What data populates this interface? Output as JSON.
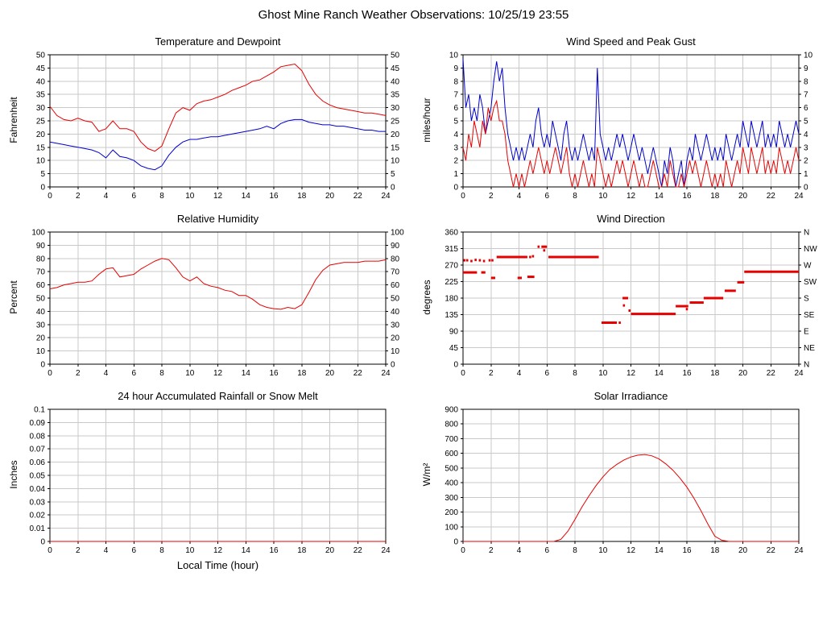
{
  "page_title": "Ghost Mine Ranch Weather Observations: 10/25/19 23:55",
  "chart_data": [
    {
      "type": "line",
      "title": "Temperature and Dewpoint",
      "ylabel": "Fahrenheit",
      "xlim": [
        0,
        24
      ],
      "ylim": [
        0,
        50
      ],
      "xticks": [
        0,
        2,
        4,
        6,
        8,
        10,
        12,
        14,
        16,
        18,
        20,
        22,
        24
      ],
      "yticks": [
        0,
        5,
        10,
        15,
        20,
        25,
        30,
        35,
        40,
        45,
        50
      ],
      "mirror_right": true,
      "grid": true,
      "series": [
        {
          "name": "temperature",
          "color": "#e60000",
          "x0": 0,
          "xstep": 0.5,
          "y": [
            30.5,
            27,
            25.5,
            25,
            26,
            25,
            24.5,
            21,
            22,
            25,
            22,
            22,
            21,
            17,
            14.5,
            13.5,
            15.5,
            22,
            28,
            30,
            29,
            31.5,
            32.5,
            33,
            34,
            35,
            36.5,
            37.5,
            38.5,
            40,
            40.5,
            42,
            43.5,
            45.5,
            46,
            46.5,
            44,
            39,
            35,
            32.5,
            31,
            30,
            29.5,
            29,
            28.5,
            28,
            28,
            27.5,
            27
          ]
        },
        {
          "name": "dewpoint",
          "color": "#0000cc",
          "x0": 0,
          "xstep": 0.5,
          "y": [
            17,
            16.5,
            16,
            15.5,
            15,
            14.5,
            14,
            13,
            11,
            14,
            11.5,
            11,
            10,
            8,
            7,
            6.5,
            8,
            12,
            15,
            17,
            18,
            18,
            18.5,
            19,
            19,
            19.5,
            20,
            20.5,
            21,
            21.5,
            22,
            23,
            22,
            24,
            25,
            25.5,
            25.5,
            24.5,
            24,
            23.5,
            23.5,
            23,
            23,
            22.5,
            22,
            21.5,
            21.5,
            21,
            21
          ]
        }
      ]
    },
    {
      "type": "line",
      "title": "Wind Speed and Peak Gust",
      "ylabel": "miles/hour",
      "xlim": [
        0,
        24
      ],
      "ylim": [
        0,
        10
      ],
      "xticks": [
        0,
        2,
        4,
        6,
        8,
        10,
        12,
        14,
        16,
        18,
        20,
        22,
        24
      ],
      "yticks": [
        0,
        1,
        2,
        3,
        4,
        5,
        6,
        7,
        8,
        9,
        10
      ],
      "mirror_right": true,
      "grid": true,
      "series": [
        {
          "name": "peak-gust",
          "color": "#0000cc",
          "x0": 0,
          "xstep": 0.2,
          "y": [
            9.7,
            6,
            7,
            5,
            6,
            5,
            7,
            6,
            4,
            5,
            6,
            8,
            9.5,
            8,
            9,
            6,
            4,
            3,
            2,
            3,
            2,
            3,
            2,
            3,
            4,
            3,
            5,
            6,
            4,
            3,
            4,
            3,
            5,
            4,
            3,
            2,
            4,
            5,
            3,
            2,
            3,
            2,
            3,
            4,
            3,
            2,
            3,
            2,
            9,
            4,
            3,
            2,
            3,
            2,
            3,
            4,
            3,
            4,
            3,
            2,
            3,
            4,
            3,
            2,
            3,
            2,
            1,
            2,
            3,
            2,
            1,
            0,
            2,
            1,
            3,
            2,
            0,
            1,
            2,
            0,
            2,
            3,
            2,
            4,
            3,
            2,
            3,
            4,
            3,
            2,
            3,
            2,
            3,
            2,
            4,
            3,
            2,
            3,
            4,
            3,
            5,
            4,
            3,
            5,
            4,
            3,
            4,
            5,
            3,
            4,
            3,
            4,
            3,
            5,
            4,
            3,
            4,
            3,
            4,
            5,
            4
          ]
        },
        {
          "name": "wind-speed",
          "color": "#e60000",
          "x0": 0,
          "xstep": 0.2,
          "y": [
            3,
            2,
            4,
            3,
            5,
            4,
            3,
            5,
            4,
            6,
            5,
            6,
            6.5,
            5,
            5,
            4,
            2,
            1,
            0,
            1,
            0,
            1,
            0,
            1,
            2,
            1,
            2,
            3,
            2,
            1,
            2,
            1,
            2,
            3,
            2,
            1,
            2,
            3,
            1,
            0,
            1,
            0,
            1,
            2,
            1,
            0,
            1,
            0,
            3,
            2,
            1,
            0,
            1,
            0,
            1,
            2,
            1,
            2,
            1,
            0,
            1,
            2,
            1,
            0,
            1,
            0,
            0,
            1,
            2,
            1,
            0,
            0,
            1,
            0,
            2,
            1,
            0,
            0,
            1,
            0,
            1,
            2,
            1,
            2,
            1,
            0,
            1,
            2,
            1,
            0,
            1,
            0,
            1,
            0,
            2,
            1,
            0,
            1,
            2,
            1,
            3,
            2,
            1,
            3,
            2,
            1,
            2,
            3,
            1,
            2,
            1,
            2,
            1,
            3,
            2,
            1,
            2,
            1,
            2,
            3,
            2
          ]
        }
      ]
    },
    {
      "type": "line",
      "title": "Relative Humidity",
      "ylabel": "Percent",
      "xlim": [
        0,
        24
      ],
      "ylim": [
        0,
        100
      ],
      "xticks": [
        0,
        2,
        4,
        6,
        8,
        10,
        12,
        14,
        16,
        18,
        20,
        22,
        24
      ],
      "yticks": [
        0,
        10,
        20,
        30,
        40,
        50,
        60,
        70,
        80,
        90,
        100
      ],
      "mirror_right": true,
      "grid": true,
      "series": [
        {
          "name": "relative-humidity",
          "color": "#e60000",
          "x0": 0,
          "xstep": 0.5,
          "y": [
            57,
            58,
            60,
            61,
            62,
            62,
            63,
            68,
            72,
            73,
            66,
            67,
            68,
            72,
            75,
            78,
            80,
            79,
            73,
            66,
            63,
            66,
            61,
            59,
            58,
            56,
            55,
            52,
            52,
            49,
            45,
            43,
            42,
            41.5,
            43,
            42,
            45,
            54,
            64,
            71,
            75,
            76,
            77,
            77,
            77,
            78,
            78,
            78,
            79
          ]
        }
      ]
    },
    {
      "type": "scatter",
      "title": "Wind Direction",
      "ylabel": "degrees",
      "xlim": [
        0,
        24
      ],
      "ylim": [
        0,
        360
      ],
      "xticks": [
        0,
        2,
        4,
        6,
        8,
        10,
        12,
        14,
        16,
        18,
        20,
        22,
        24
      ],
      "yticks": [
        0,
        45,
        90,
        135,
        180,
        225,
        270,
        315,
        360
      ],
      "right_labels": [
        "N",
        "NE",
        "E",
        "SE",
        "S",
        "SW",
        "W",
        "NW",
        "N"
      ],
      "grid": true,
      "series": [
        {
          "name": "wind-direction",
          "color": "#e60000",
          "segments": [
            [
              0.0,
              1.0,
              250
            ],
            [
              1.3,
              1.6,
              250
            ],
            [
              2.0,
              2.3,
              235
            ],
            [
              2.4,
              4.6,
              292
            ],
            [
              3.9,
              4.2,
              235
            ],
            [
              4.6,
              5.1,
              238
            ],
            [
              5.6,
              6.0,
              320
            ],
            [
              6.1,
              9.7,
              292
            ],
            [
              9.9,
              11.0,
              113
            ],
            [
              11.4,
              11.8,
              180
            ],
            [
              12.0,
              15.2,
              137
            ],
            [
              15.2,
              16.1,
              158
            ],
            [
              16.2,
              17.2,
              168
            ],
            [
              17.2,
              18.6,
              180
            ],
            [
              18.7,
              19.5,
              200
            ],
            [
              19.6,
              20.1,
              223
            ],
            [
              20.1,
              24.0,
              252
            ]
          ],
          "points": [
            [
              0.1,
              283
            ],
            [
              0.3,
              283
            ],
            [
              0.6,
              281
            ],
            [
              0.9,
              284
            ],
            [
              1.2,
              283
            ],
            [
              1.5,
              281
            ],
            [
              1.9,
              283
            ],
            [
              2.1,
              283
            ],
            [
              4.8,
              292
            ],
            [
              5.0,
              294
            ],
            [
              5.4,
              320
            ],
            [
              5.8,
              310
            ],
            [
              11.2,
              113
            ],
            [
              11.5,
              160
            ],
            [
              11.9,
              146
            ],
            [
              16.0,
              150
            ]
          ]
        }
      ]
    },
    {
      "type": "line",
      "title": "24 hour Accumulated Rainfall or Snow Melt",
      "ylabel": "Inches",
      "xlabel": "Local Time (hour)",
      "xlim": [
        0,
        24
      ],
      "ylim": [
        0,
        0.1
      ],
      "xticks": [
        0,
        2,
        4,
        6,
        8,
        10,
        12,
        14,
        16,
        18,
        20,
        22,
        24
      ],
      "yticks": [
        0,
        0.01,
        0.02,
        0.03,
        0.04,
        0.05,
        0.06,
        0.07,
        0.08,
        0.09,
        0.1
      ],
      "grid": true,
      "series": [
        {
          "name": "rainfall",
          "color": "#e60000",
          "x0": 0,
          "xstep": 24,
          "y": [
            0,
            0
          ]
        }
      ]
    },
    {
      "type": "line",
      "title": "Solar Irradiance",
      "ylabel": "W/m²",
      "xlim": [
        0,
        24
      ],
      "ylim": [
        0,
        900
      ],
      "xticks": [
        0,
        2,
        4,
        6,
        8,
        10,
        12,
        14,
        16,
        18,
        20,
        22,
        24
      ],
      "yticks": [
        0,
        100,
        200,
        300,
        400,
        500,
        600,
        700,
        800,
        900
      ],
      "grid": true,
      "series": [
        {
          "name": "solar-irradiance",
          "color": "#e60000",
          "x0": 0,
          "xstep": 0.5,
          "y": [
            0,
            0,
            0,
            0,
            0,
            0,
            0,
            0,
            0,
            0,
            0,
            0,
            0,
            0,
            15,
            70,
            150,
            235,
            310,
            380,
            440,
            490,
            525,
            555,
            575,
            588,
            592,
            583,
            562,
            528,
            485,
            432,
            370,
            295,
            210,
            118,
            35,
            8,
            0,
            0,
            0,
            0,
            0,
            0,
            0,
            0,
            0,
            0,
            0
          ]
        }
      ]
    }
  ]
}
